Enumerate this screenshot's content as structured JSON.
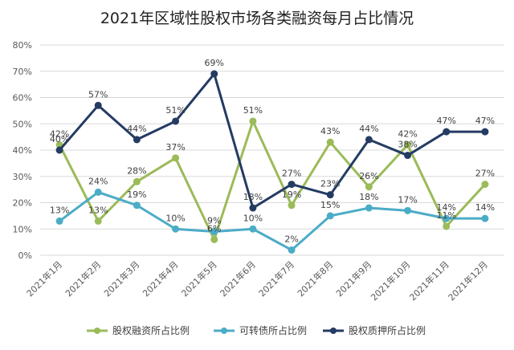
{
  "chart_data": {
    "type": "line",
    "title": "2021年区域性股权市场各类融资每月占比情况",
    "xlabel": "",
    "ylabel": "",
    "ylim": [
      0,
      80
    ],
    "y_ticks": [
      "0%",
      "10%",
      "20%",
      "30%",
      "40%",
      "50%",
      "60%",
      "70%",
      "80%"
    ],
    "grid": true,
    "legend_position": "bottom",
    "categories": [
      "2021年1月",
      "2021年2月",
      "2021年3月",
      "2021年4月",
      "2021年5月",
      "2021年6月",
      "2021年7月",
      "2021年8月",
      "2021年9月",
      "2021年10月",
      "2021年11月",
      "2021年12月"
    ],
    "series": [
      {
        "name": "股权融资所占比例",
        "color": "#9bbb59",
        "values": [
          42,
          13,
          28,
          37,
          6,
          51,
          19,
          43,
          26,
          42,
          11,
          27
        ],
        "labels": [
          "42%",
          "13%",
          "28%",
          "37%",
          "6%",
          "51%",
          "19%",
          "43%",
          "26%",
          "42%",
          "11%",
          "27%"
        ]
      },
      {
        "name": "可转债所占比例",
        "color": "#4bacc6",
        "values": [
          13,
          24,
          19,
          10,
          9,
          10,
          2,
          15,
          18,
          17,
          14,
          14
        ],
        "labels": [
          "13%",
          "24%",
          "19%",
          "10%",
          "9%",
          "10%",
          "2%",
          "15%",
          "18%",
          "17%",
          "14%",
          "14%"
        ]
      },
      {
        "name": "股权质押所占比例",
        "color": "#243b63",
        "values": [
          40,
          57,
          44,
          51,
          69,
          18,
          27,
          23,
          44,
          38,
          47,
          47
        ],
        "labels": [
          "40%",
          "57%",
          "44%",
          "51%",
          "69%",
          "18%",
          "27%",
          "23%",
          "44%",
          "38%",
          "47%",
          "47%"
        ]
      }
    ]
  }
}
